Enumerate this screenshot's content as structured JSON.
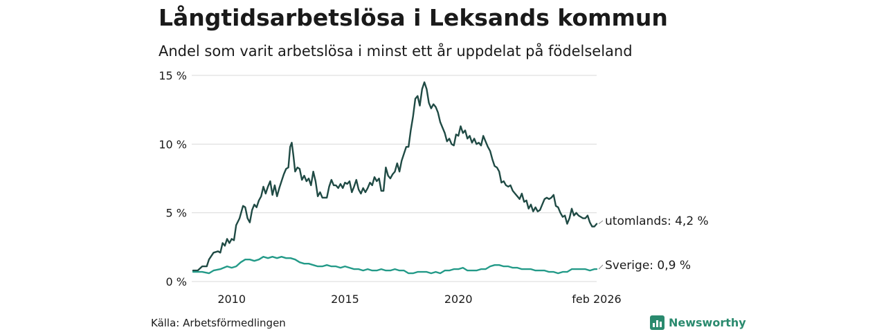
{
  "header": {
    "title": "Långtidsarbetslösa i Leksands kommun",
    "subtitle": "Andel som varit arbetslösa i minst ett år uppdelat på födelseland"
  },
  "footer": {
    "source": "Källa: Arbetsförmedlingen",
    "logo_text": "Newsworthy"
  },
  "colors": {
    "utomlands": "#1f4a44",
    "sverige": "#239a88",
    "grid": "#d9d9d9",
    "brand": "#2a8a6e"
  },
  "chart_data": {
    "type": "line",
    "title": "Långtidsarbetslösa i Leksands kommun",
    "subtitle": "Andel som varit arbetslösa i minst ett år uppdelat på födelseland",
    "xlabel": "",
    "ylabel": "",
    "xlim": [
      2008.3,
      2026.1
    ],
    "ylim": [
      0,
      15
    ],
    "y_ticks": [
      {
        "value": 0,
        "label": "0 %"
      },
      {
        "value": 5,
        "label": "5 %"
      },
      {
        "value": 10,
        "label": "10 %"
      },
      {
        "value": 15,
        "label": "15 %"
      }
    ],
    "x_ticks": [
      {
        "value": 2010,
        "label": "2010"
      },
      {
        "value": 2015,
        "label": "2015"
      },
      {
        "value": 2020,
        "label": "2020"
      },
      {
        "value": 2026.1,
        "label": "feb 2026"
      }
    ],
    "grid": true,
    "series": [
      {
        "name": "utomlands",
        "end_label": "utomlands: 4,2 %",
        "points": [
          [
            2008.3,
            0.8
          ],
          [
            2008.5,
            0.8
          ],
          [
            2008.7,
            1.1
          ],
          [
            2008.9,
            1.1
          ],
          [
            2009.0,
            1.6
          ],
          [
            2009.2,
            2.1
          ],
          [
            2009.4,
            2.2
          ],
          [
            2009.5,
            2.1
          ],
          [
            2009.6,
            2.8
          ],
          [
            2009.7,
            2.6
          ],
          [
            2009.8,
            3.1
          ],
          [
            2009.9,
            2.8
          ],
          [
            2010.0,
            3.1
          ],
          [
            2010.1,
            3.0
          ],
          [
            2010.2,
            4.1
          ],
          [
            2010.35,
            4.6
          ],
          [
            2010.5,
            5.5
          ],
          [
            2010.6,
            5.4
          ],
          [
            2010.7,
            4.6
          ],
          [
            2010.8,
            4.3
          ],
          [
            2010.9,
            5.2
          ],
          [
            2011.0,
            5.6
          ],
          [
            2011.1,
            5.4
          ],
          [
            2011.2,
            5.9
          ],
          [
            2011.3,
            6.2
          ],
          [
            2011.4,
            6.9
          ],
          [
            2011.5,
            6.4
          ],
          [
            2011.6,
            6.9
          ],
          [
            2011.7,
            7.3
          ],
          [
            2011.8,
            6.3
          ],
          [
            2011.9,
            7.0
          ],
          [
            2012.0,
            6.2
          ],
          [
            2012.1,
            6.8
          ],
          [
            2012.2,
            7.3
          ],
          [
            2012.3,
            7.8
          ],
          [
            2012.4,
            8.2
          ],
          [
            2012.5,
            8.3
          ],
          [
            2012.58,
            9.8
          ],
          [
            2012.65,
            10.1
          ],
          [
            2012.72,
            9.2
          ],
          [
            2012.8,
            8.0
          ],
          [
            2012.9,
            8.3
          ],
          [
            2013.0,
            8.2
          ],
          [
            2013.1,
            7.4
          ],
          [
            2013.2,
            7.7
          ],
          [
            2013.3,
            7.3
          ],
          [
            2013.4,
            7.5
          ],
          [
            2013.5,
            7.0
          ],
          [
            2013.6,
            8.0
          ],
          [
            2013.7,
            7.3
          ],
          [
            2013.8,
            6.2
          ],
          [
            2013.9,
            6.5
          ],
          [
            2014.0,
            6.1
          ],
          [
            2014.2,
            6.1
          ],
          [
            2014.3,
            6.9
          ],
          [
            2014.4,
            7.4
          ],
          [
            2014.5,
            7.0
          ],
          [
            2014.6,
            7.0
          ],
          [
            2014.7,
            6.8
          ],
          [
            2014.8,
            7.1
          ],
          [
            2014.9,
            6.8
          ],
          [
            2015.0,
            7.2
          ],
          [
            2015.1,
            7.1
          ],
          [
            2015.2,
            7.3
          ],
          [
            2015.3,
            6.5
          ],
          [
            2015.4,
            6.9
          ],
          [
            2015.5,
            7.4
          ],
          [
            2015.6,
            6.7
          ],
          [
            2015.7,
            6.4
          ],
          [
            2015.8,
            6.8
          ],
          [
            2015.9,
            6.5
          ],
          [
            2016.0,
            6.8
          ],
          [
            2016.1,
            7.2
          ],
          [
            2016.2,
            7.0
          ],
          [
            2016.3,
            7.6
          ],
          [
            2016.4,
            7.3
          ],
          [
            2016.5,
            7.5
          ],
          [
            2016.6,
            6.6
          ],
          [
            2016.7,
            6.6
          ],
          [
            2016.8,
            8.3
          ],
          [
            2016.9,
            7.7
          ],
          [
            2017.0,
            7.5
          ],
          [
            2017.1,
            7.8
          ],
          [
            2017.2,
            8.0
          ],
          [
            2017.3,
            8.6
          ],
          [
            2017.4,
            8.0
          ],
          [
            2017.5,
            8.8
          ],
          [
            2017.6,
            9.3
          ],
          [
            2017.7,
            9.8
          ],
          [
            2017.8,
            9.8
          ],
          [
            2017.9,
            11.0
          ],
          [
            2018.0,
            12.0
          ],
          [
            2018.1,
            13.3
          ],
          [
            2018.2,
            13.5
          ],
          [
            2018.3,
            12.8
          ],
          [
            2018.4,
            14.0
          ],
          [
            2018.5,
            14.5
          ],
          [
            2018.6,
            14.0
          ],
          [
            2018.7,
            13.0
          ],
          [
            2018.8,
            12.6
          ],
          [
            2018.9,
            12.9
          ],
          [
            2019.0,
            12.7
          ],
          [
            2019.1,
            12.3
          ],
          [
            2019.2,
            11.6
          ],
          [
            2019.3,
            11.2
          ],
          [
            2019.4,
            10.8
          ],
          [
            2019.5,
            10.2
          ],
          [
            2019.6,
            10.4
          ],
          [
            2019.7,
            10.0
          ],
          [
            2019.8,
            9.9
          ],
          [
            2019.9,
            10.7
          ],
          [
            2020.0,
            10.6
          ],
          [
            2020.1,
            11.3
          ],
          [
            2020.2,
            10.8
          ],
          [
            2020.3,
            11.0
          ],
          [
            2020.4,
            10.4
          ],
          [
            2020.5,
            10.6
          ],
          [
            2020.6,
            10.1
          ],
          [
            2020.7,
            10.4
          ],
          [
            2020.8,
            10.0
          ],
          [
            2020.9,
            10.1
          ],
          [
            2021.0,
            9.9
          ],
          [
            2021.1,
            10.6
          ],
          [
            2021.2,
            10.2
          ],
          [
            2021.3,
            9.8
          ],
          [
            2021.4,
            9.5
          ],
          [
            2021.5,
            8.9
          ],
          [
            2021.6,
            8.4
          ],
          [
            2021.7,
            8.3
          ],
          [
            2021.8,
            8.0
          ],
          [
            2021.9,
            7.2
          ],
          [
            2022.0,
            7.3
          ],
          [
            2022.1,
            7.0
          ],
          [
            2022.2,
            6.9
          ],
          [
            2022.3,
            7.0
          ],
          [
            2022.4,
            6.6
          ],
          [
            2022.5,
            6.4
          ],
          [
            2022.6,
            6.2
          ],
          [
            2022.7,
            6.0
          ],
          [
            2022.8,
            6.4
          ],
          [
            2022.9,
            5.8
          ],
          [
            2023.0,
            5.9
          ],
          [
            2023.1,
            5.3
          ],
          [
            2023.2,
            5.6
          ],
          [
            2023.3,
            5.1
          ],
          [
            2023.4,
            5.4
          ],
          [
            2023.5,
            5.1
          ],
          [
            2023.6,
            5.2
          ],
          [
            2023.7,
            5.6
          ],
          [
            2023.8,
            6.0
          ],
          [
            2023.9,
            6.1
          ],
          [
            2024.0,
            6.0
          ],
          [
            2024.1,
            6.1
          ],
          [
            2024.2,
            6.3
          ],
          [
            2024.3,
            5.5
          ],
          [
            2024.4,
            5.4
          ],
          [
            2024.5,
            5.0
          ],
          [
            2024.6,
            4.7
          ],
          [
            2024.7,
            4.8
          ],
          [
            2024.8,
            4.2
          ],
          [
            2024.9,
            4.6
          ],
          [
            2025.0,
            5.3
          ],
          [
            2025.1,
            4.8
          ],
          [
            2025.2,
            5.0
          ],
          [
            2025.3,
            4.8
          ],
          [
            2025.4,
            4.7
          ],
          [
            2025.5,
            4.6
          ],
          [
            2025.6,
            4.6
          ],
          [
            2025.7,
            4.8
          ],
          [
            2025.8,
            4.3
          ],
          [
            2025.9,
            4.0
          ],
          [
            2026.0,
            4.0
          ],
          [
            2026.1,
            4.2
          ]
        ]
      },
      {
        "name": "Sverige",
        "end_label": "Sverige: 0,9 %",
        "points": [
          [
            2008.3,
            0.7
          ],
          [
            2008.7,
            0.7
          ],
          [
            2009.0,
            0.6
          ],
          [
            2009.2,
            0.8
          ],
          [
            2009.5,
            0.9
          ],
          [
            2009.8,
            1.1
          ],
          [
            2010.0,
            1.0
          ],
          [
            2010.2,
            1.1
          ],
          [
            2010.4,
            1.4
          ],
          [
            2010.6,
            1.6
          ],
          [
            2010.8,
            1.6
          ],
          [
            2011.0,
            1.5
          ],
          [
            2011.2,
            1.6
          ],
          [
            2011.4,
            1.8
          ],
          [
            2011.6,
            1.7
          ],
          [
            2011.8,
            1.8
          ],
          [
            2012.0,
            1.7
          ],
          [
            2012.2,
            1.8
          ],
          [
            2012.4,
            1.7
          ],
          [
            2012.6,
            1.7
          ],
          [
            2012.8,
            1.6
          ],
          [
            2013.0,
            1.4
          ],
          [
            2013.2,
            1.3
          ],
          [
            2013.4,
            1.3
          ],
          [
            2013.6,
            1.2
          ],
          [
            2013.8,
            1.1
          ],
          [
            2014.0,
            1.1
          ],
          [
            2014.2,
            1.2
          ],
          [
            2014.4,
            1.1
          ],
          [
            2014.6,
            1.1
          ],
          [
            2014.8,
            1.0
          ],
          [
            2015.0,
            1.1
          ],
          [
            2015.2,
            1.0
          ],
          [
            2015.4,
            0.9
          ],
          [
            2015.6,
            0.9
          ],
          [
            2015.8,
            0.8
          ],
          [
            2016.0,
            0.9
          ],
          [
            2016.2,
            0.8
          ],
          [
            2016.4,
            0.8
          ],
          [
            2016.6,
            0.9
          ],
          [
            2016.8,
            0.8
          ],
          [
            2017.0,
            0.8
          ],
          [
            2017.2,
            0.9
          ],
          [
            2017.4,
            0.8
          ],
          [
            2017.6,
            0.8
          ],
          [
            2017.8,
            0.6
          ],
          [
            2018.0,
            0.6
          ],
          [
            2018.2,
            0.7
          ],
          [
            2018.4,
            0.7
          ],
          [
            2018.6,
            0.7
          ],
          [
            2018.8,
            0.6
          ],
          [
            2019.0,
            0.7
          ],
          [
            2019.2,
            0.6
          ],
          [
            2019.4,
            0.8
          ],
          [
            2019.6,
            0.8
          ],
          [
            2019.8,
            0.9
          ],
          [
            2020.0,
            0.9
          ],
          [
            2020.2,
            1.0
          ],
          [
            2020.4,
            0.8
          ],
          [
            2020.6,
            0.8
          ],
          [
            2020.8,
            0.8
          ],
          [
            2021.0,
            0.9
          ],
          [
            2021.2,
            0.9
          ],
          [
            2021.4,
            1.1
          ],
          [
            2021.6,
            1.2
          ],
          [
            2021.8,
            1.2
          ],
          [
            2022.0,
            1.1
          ],
          [
            2022.2,
            1.1
          ],
          [
            2022.4,
            1.0
          ],
          [
            2022.6,
            1.0
          ],
          [
            2022.8,
            0.9
          ],
          [
            2023.0,
            0.9
          ],
          [
            2023.2,
            0.9
          ],
          [
            2023.4,
            0.8
          ],
          [
            2023.6,
            0.8
          ],
          [
            2023.8,
            0.8
          ],
          [
            2024.0,
            0.7
          ],
          [
            2024.2,
            0.7
          ],
          [
            2024.4,
            0.6
          ],
          [
            2024.6,
            0.7
          ],
          [
            2024.8,
            0.7
          ],
          [
            2025.0,
            0.9
          ],
          [
            2025.2,
            0.9
          ],
          [
            2025.4,
            0.9
          ],
          [
            2025.6,
            0.9
          ],
          [
            2025.8,
            0.8
          ],
          [
            2026.0,
            0.9
          ],
          [
            2026.1,
            0.9
          ]
        ]
      }
    ]
  }
}
